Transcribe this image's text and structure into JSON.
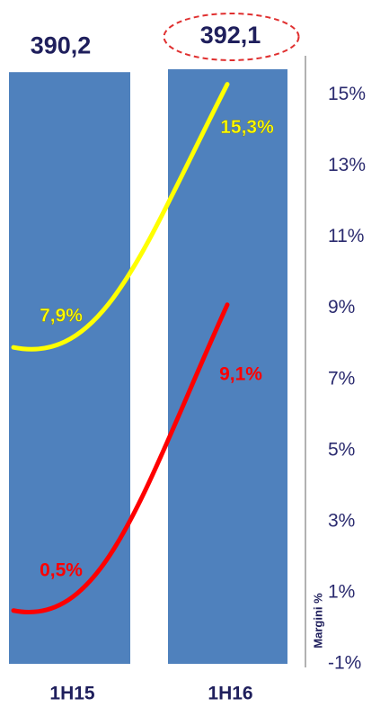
{
  "chart_data": {
    "type": "bar",
    "categories": [
      "1H15",
      "1H16"
    ],
    "series": [
      {
        "type": "bar",
        "color": "#4f81bd",
        "values": [
          390.2,
          392.1
        ],
        "value_labels": [
          "390,2",
          "392,1"
        ]
      },
      {
        "type": "line",
        "axis": "y2",
        "color": "#ffff00",
        "values": [
          7.9,
          15.3
        ],
        "value_labels": [
          "7,9%",
          "15,3%"
        ]
      },
      {
        "type": "line",
        "axis": "y2",
        "color": "#ff0000",
        "values": [
          0.5,
          9.1
        ],
        "value_labels": [
          "0,5%",
          "9,1%"
        ]
      }
    ],
    "y2label": "Margini %",
    "y2lim": [
      -1.1,
      16.1
    ],
    "y2ticks": [
      {
        "value": 15,
        "label": "15%"
      },
      {
        "value": 13,
        "label": "13%"
      },
      {
        "value": 11,
        "label": "11%"
      },
      {
        "value": 9,
        "label": "9%"
      },
      {
        "value": 7,
        "label": "7%"
      },
      {
        "value": 5,
        "label": "5%"
      },
      {
        "value": 3,
        "label": "3%"
      },
      {
        "value": 1,
        "label": "1%"
      },
      {
        "value": -1,
        "label": "-1%"
      }
    ]
  }
}
